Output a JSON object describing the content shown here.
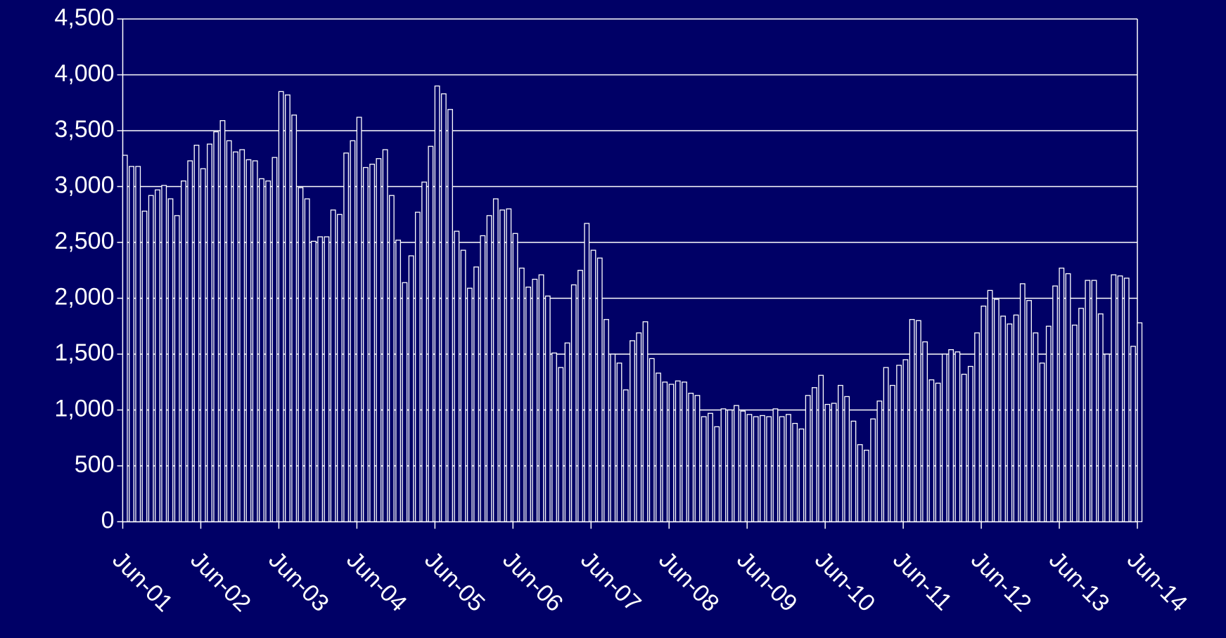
{
  "chart_data": {
    "type": "bar",
    "categories": [
      "Jun-01",
      null,
      null,
      null,
      null,
      null,
      null,
      null,
      null,
      null,
      null,
      null,
      "Jun-02",
      null,
      null,
      null,
      null,
      null,
      null,
      null,
      null,
      null,
      null,
      null,
      "Jun-03",
      null,
      null,
      null,
      null,
      null,
      null,
      null,
      null,
      null,
      null,
      null,
      "Jun-04",
      null,
      null,
      null,
      null,
      null,
      null,
      null,
      null,
      null,
      null,
      null,
      "Jun-05",
      null,
      null,
      null,
      null,
      null,
      null,
      null,
      null,
      null,
      null,
      null,
      "Jun-06",
      null,
      null,
      null,
      null,
      null,
      null,
      null,
      null,
      null,
      null,
      null,
      "Jun-07",
      null,
      null,
      null,
      null,
      null,
      null,
      null,
      null,
      null,
      null,
      null,
      "Jun-08",
      null,
      null,
      null,
      null,
      null,
      null,
      null,
      null,
      null,
      null,
      null,
      "Jun-09",
      null,
      null,
      null,
      null,
      null,
      null,
      null,
      null,
      null,
      null,
      null,
      "Jun-10",
      null,
      null,
      null,
      null,
      null,
      null,
      null,
      null,
      null,
      null,
      null,
      "Jun-11",
      null,
      null,
      null,
      null,
      null,
      null,
      null,
      null,
      null,
      null,
      null,
      "Jun-12",
      null,
      null,
      null,
      null,
      null,
      null,
      null,
      null,
      null,
      null,
      null,
      "Jun-13",
      null,
      null,
      null,
      null,
      null,
      null,
      null,
      null,
      null,
      null,
      null,
      "Jun-14"
    ],
    "values": [
      3280,
      3180,
      3180,
      2780,
      2920,
      2970,
      3010,
      2890,
      2740,
      3050,
      3230,
      3370,
      3160,
      3380,
      3490,
      3590,
      3410,
      3310,
      3330,
      3240,
      3230,
      3070,
      3050,
      3260,
      3850,
      3820,
      3640,
      2990,
      2890,
      2510,
      2550,
      2550,
      2790,
      2750,
      3300,
      3410,
      3620,
      3170,
      3200,
      3250,
      3330,
      2920,
      2520,
      2140,
      2380,
      2770,
      3040,
      3360,
      3900,
      3830,
      3690,
      2600,
      2430,
      2090,
      2280,
      2560,
      2740,
      2890,
      2790,
      2800,
      2580,
      2270,
      2100,
      2170,
      2210,
      2020,
      1510,
      1380,
      1600,
      2120,
      2250,
      2670,
      2430,
      2360,
      1810,
      1500,
      1420,
      1180,
      1620,
      1690,
      1790,
      1460,
      1330,
      1250,
      1230,
      1260,
      1250,
      1150,
      1130,
      940,
      970,
      850,
      1010,
      1000,
      1040,
      990,
      960,
      940,
      950,
      940,
      1010,
      940,
      960,
      880,
      830,
      1130,
      1200,
      1310,
      1050,
      1060,
      1220,
      1120,
      900,
      690,
      640,
      920,
      1080,
      1380,
      1220,
      1400,
      1450,
      1810,
      1800,
      1610,
      1270,
      1240,
      1500,
      1540,
      1520,
      1320,
      1390,
      1690,
      1930,
      2070,
      1990,
      1840,
      1770,
      1850,
      2130,
      1980,
      1690,
      1420,
      1750,
      2110,
      2270,
      2220,
      1760,
      1910,
      2160,
      2160,
      1860,
      1500,
      2210,
      2200,
      2180,
      1570,
      1780
    ],
    "color": "#ffffff",
    "ylim": [
      0,
      4500
    ],
    "yticks": [
      0,
      500,
      {
        "value": 1000,
        "label": "1,000"
      },
      {
        "value": 1500,
        "label": "1,500"
      },
      {
        "value": 2000,
        "label": "2,000"
      },
      {
        "value": 2500,
        "label": "2,500"
      },
      {
        "value": 3000,
        "label": "3,000"
      },
      {
        "value": 3500,
        "label": "3,500"
      },
      {
        "value": 4000,
        "label": "4,000"
      },
      {
        "value": 4500,
        "label": "4,500"
      }
    ],
    "grid": true
  }
}
